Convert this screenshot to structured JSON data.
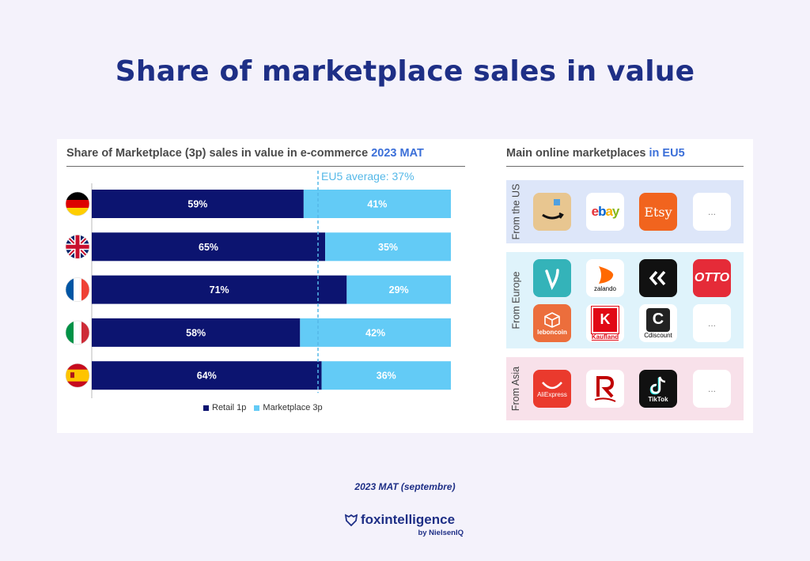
{
  "page": {
    "title": "Share of marketplace sales in value",
    "footnote": "2023 MAT (septembre)",
    "brand": {
      "name": "foxintelligence",
      "sub": "by NielsenIQ"
    }
  },
  "chart_panel": {
    "heading": "Share of Marketplace (3p) sales in value in e-commerce",
    "heading_accent": "2023 MAT"
  },
  "chart_data": {
    "type": "bar",
    "orientation": "horizontal",
    "stacked": true,
    "categories": [
      "Germany",
      "United Kingdom",
      "France",
      "Italy",
      "Spain"
    ],
    "series": [
      {
        "name": "Retail 1p",
        "values": [
          59,
          65,
          71,
          58,
          64
        ],
        "color": "#0c1470"
      },
      {
        "name": "Marketplace 3p",
        "values": [
          41,
          35,
          29,
          42,
          36
        ],
        "color": "#63cbf6"
      }
    ],
    "data_labels": [
      [
        "59%",
        "41%"
      ],
      [
        "65%",
        "35%"
      ],
      [
        "71%",
        "29%"
      ],
      [
        "58%",
        "42%"
      ],
      [
        "64%",
        "36%"
      ]
    ],
    "reference_line": {
      "label": "EU5 average: 37%",
      "value": 37,
      "color": "#55b8e8"
    },
    "xlim": [
      0,
      100
    ],
    "legend_position": "bottom",
    "grid": false
  },
  "marketplaces": {
    "heading": "Main online marketplaces",
    "heading_accent": "in EU5",
    "regions": [
      {
        "label": "From the US",
        "logos": [
          "amazon",
          "ebay",
          "Etsy",
          "..."
        ]
      },
      {
        "label": "From Europe",
        "logos": [
          "vinted",
          "zalando",
          "Vestiaire Collective",
          "OTTO",
          "leboncoin",
          "Kaufland",
          "Cdiscount",
          "..."
        ]
      },
      {
        "label": "From Asia",
        "logos": [
          "AliExpress",
          "Rakuten",
          "TikTok",
          "..."
        ]
      }
    ],
    "logo_text": {
      "ebay": "ebay",
      "etsy": "Etsy",
      "zalando": "zalando",
      "otto": "OTTO",
      "leboncoin": "leboncoin",
      "kaufland": "Kaufland",
      "cdiscount": "Cdiscount",
      "aliexpress": "AliExpress",
      "tiktok": "TikTok",
      "more": "..."
    }
  }
}
